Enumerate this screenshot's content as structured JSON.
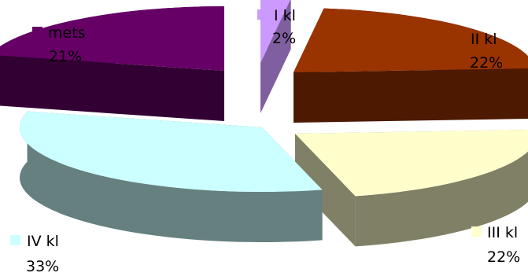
{
  "chart_data": {
    "type": "pie",
    "style": "3d-exploded",
    "title": "",
    "legend": "labels-with-swatches-next-to-slices",
    "slices": [
      {
        "label": "I kl",
        "value": 2,
        "value_label": "2%",
        "color": "#CC99FF",
        "side_color": "#7F5FA0"
      },
      {
        "label": "II kl",
        "value": 22,
        "value_label": "22%",
        "color": "#993300",
        "side_color": "#4D1900"
      },
      {
        "label": "III kl",
        "value": 22,
        "value_label": "22%",
        "color": "#FFFFCC",
        "side_color": "#808066"
      },
      {
        "label": "IV kl",
        "value": 33,
        "value_label": "33%",
        "color": "#CCFFFF",
        "side_color": "#668080"
      },
      {
        "label": "mets",
        "value": 21,
        "value_label": "21%",
        "color": "#660066",
        "side_color": "#330033"
      }
    ]
  }
}
